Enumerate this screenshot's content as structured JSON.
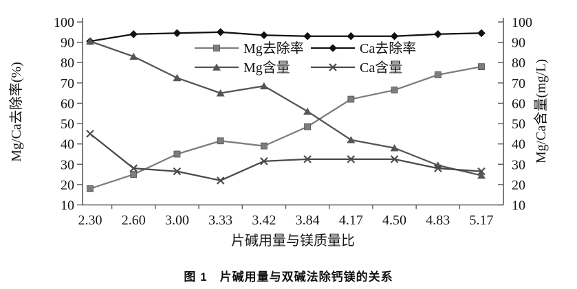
{
  "figure": {
    "caption": "图 1　片碱用量与双碱法除钙镁的关系"
  },
  "chart_data": {
    "type": "line",
    "title": "",
    "xlabel": "片碱用量与镁质量比",
    "ylabel_left": "Mg/Ca去除率(%)",
    "ylabel_right": "Mg/Ca含量(mg/L)",
    "categories": [
      "2.30",
      "2.60",
      "3.00",
      "3.33",
      "3.42",
      "3.84",
      "4.17",
      "4.50",
      "4.83",
      "5.17"
    ],
    "ylim": [
      10,
      100
    ],
    "yticks": [
      10,
      20,
      30,
      40,
      50,
      60,
      70,
      80,
      90,
      100
    ],
    "grid": false,
    "legend_position": "top-center-inside",
    "legend_rows": [
      [
        0,
        1
      ],
      [
        2,
        3
      ]
    ],
    "series": [
      {
        "name": "Mg去除率",
        "marker": "square",
        "color": "#7d7d7d",
        "values": [
          18,
          25,
          35,
          41.5,
          39,
          48.5,
          62,
          66.5,
          74,
          78
        ]
      },
      {
        "name": "Ca去除率",
        "marker": "diamond",
        "color": "#111111",
        "values": [
          90.5,
          94,
          94.5,
          95,
          93.5,
          93,
          93,
          93,
          94,
          94.5
        ]
      },
      {
        "name": "Mg含量",
        "marker": "triangle",
        "color": "#555555",
        "values": [
          90.5,
          83,
          72.5,
          65,
          68.5,
          56,
          42,
          38,
          29.5,
          24.5
        ]
      },
      {
        "name": "Ca含量",
        "marker": "x",
        "color": "#4a4a4a",
        "values": [
          45,
          28,
          26.5,
          22,
          31.5,
          32.5,
          32.5,
          32.5,
          28,
          26.5
        ]
      }
    ]
  }
}
